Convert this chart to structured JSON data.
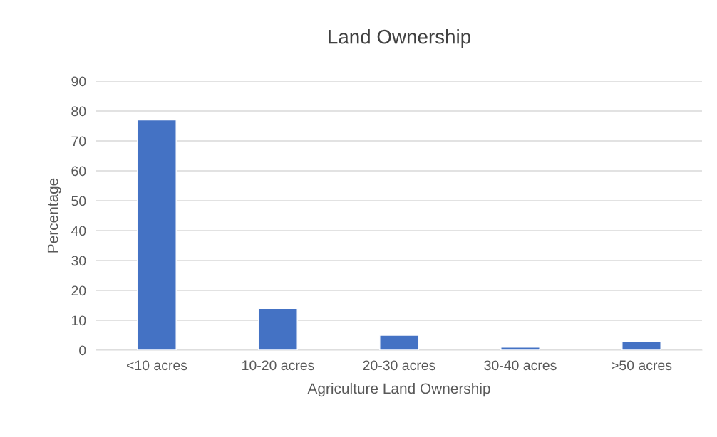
{
  "chart_data": {
    "type": "bar",
    "title": "Land Ownership",
    "xlabel": "Agriculture Land Ownership",
    "ylabel": "Percentage",
    "categories": [
      "<10 acres",
      "10-20 acres",
      "20-30 acres",
      "30-40 acres",
      ">50 acres"
    ],
    "values": [
      77,
      14,
      5,
      1,
      3
    ],
    "color": "#4472c4",
    "ylim": [
      0,
      90
    ],
    "yticks": [
      0,
      10,
      20,
      30,
      40,
      50,
      60,
      70,
      80,
      90
    ],
    "grid": "y",
    "legend": false
  }
}
